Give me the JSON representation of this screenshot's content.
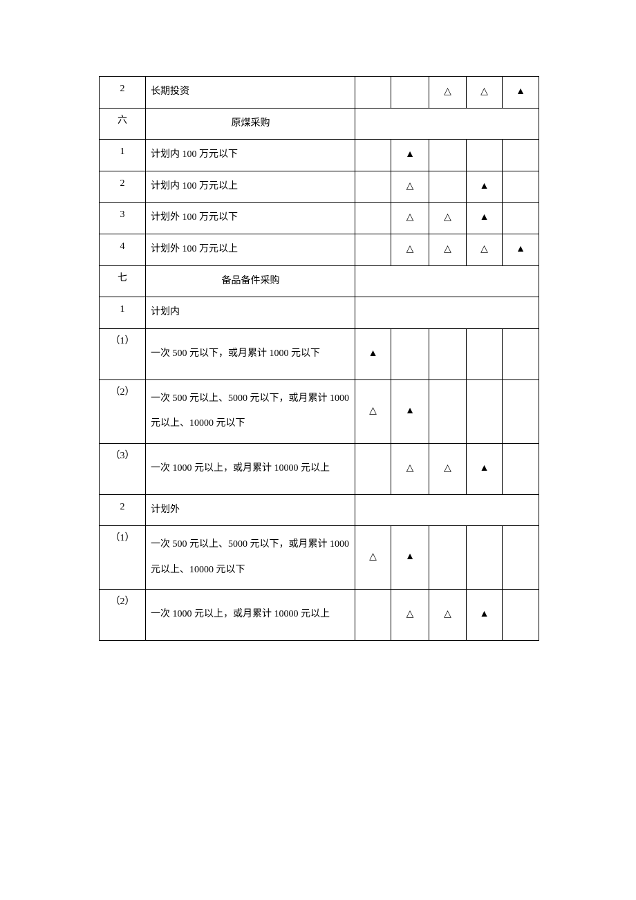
{
  "marks": {
    "filled": "▲",
    "hollow": "△"
  },
  "rows": [
    {
      "idx": "2",
      "desc": "长期投资",
      "descAlign": "left",
      "cells": [
        "",
        "",
        "△",
        "△",
        "▲"
      ],
      "spanRest": false,
      "height": "reg"
    },
    {
      "idx": "六",
      "desc": "原煤采购",
      "descAlign": "center",
      "cells": null,
      "spanRest": true,
      "height": "reg"
    },
    {
      "idx": "1",
      "desc": "计划内 100 万元以下",
      "descAlign": "left",
      "cells": [
        "",
        "▲",
        "",
        "",
        ""
      ],
      "spanRest": false,
      "height": "reg"
    },
    {
      "idx": "2",
      "desc": "计划内 100 万元以上",
      "descAlign": "left",
      "cells": [
        "",
        "△",
        "",
        "▲",
        ""
      ],
      "spanRest": false,
      "height": "reg"
    },
    {
      "idx": "3",
      "desc": "计划外 100 万元以下",
      "descAlign": "left",
      "cells": [
        "",
        "△",
        "△",
        "▲",
        ""
      ],
      "spanRest": false,
      "height": "reg"
    },
    {
      "idx": "4",
      "desc": "计划外 100 万元以上",
      "descAlign": "left",
      "cells": [
        "",
        "△",
        "△",
        "△",
        "▲"
      ],
      "spanRest": false,
      "height": "reg"
    },
    {
      "idx": "七",
      "desc": "备品备件采购",
      "descAlign": "center",
      "cells": null,
      "spanRest": true,
      "height": "reg"
    },
    {
      "idx": "1",
      "desc": "计划内",
      "descAlign": "left",
      "cells": null,
      "spanRest": true,
      "height": "reg"
    },
    {
      "idx": "（1）",
      "desc": "一次 500 元以下，或月累计 1000 元以下",
      "descAlign": "left",
      "cells": [
        "▲",
        "",
        "",
        "",
        ""
      ],
      "spanRest": false,
      "height": "tall"
    },
    {
      "idx": "（2）",
      "desc": "一次 500 元以上、5000 元以下，或月累计 1000 元以上、10000 元以下",
      "descAlign": "left",
      "cells": [
        "△",
        "▲",
        "",
        "",
        ""
      ],
      "spanRest": false,
      "height": "tall"
    },
    {
      "idx": "（3）",
      "desc": "一次 1000 元以上，或月累计 10000 元以上",
      "descAlign": "left",
      "cells": [
        "",
        "△",
        "△",
        "▲",
        ""
      ],
      "spanRest": false,
      "height": "tall"
    },
    {
      "idx": "2",
      "desc": "计划外",
      "descAlign": "left",
      "cells": null,
      "spanRest": true,
      "height": "reg"
    },
    {
      "idx": "（1）",
      "desc": "一次 500 元以上、5000 元以下，或月累计 1000 元以上、10000 元以下",
      "descAlign": "left",
      "cells": [
        "△",
        "▲",
        "",
        "",
        ""
      ],
      "spanRest": false,
      "height": "tall"
    },
    {
      "idx": "（2）",
      "desc": "一次 1000 元以上，或月累计 10000 元以上",
      "descAlign": "left",
      "cells": [
        "",
        "△",
        "△",
        "▲",
        ""
      ],
      "spanRest": false,
      "height": "tall"
    }
  ]
}
